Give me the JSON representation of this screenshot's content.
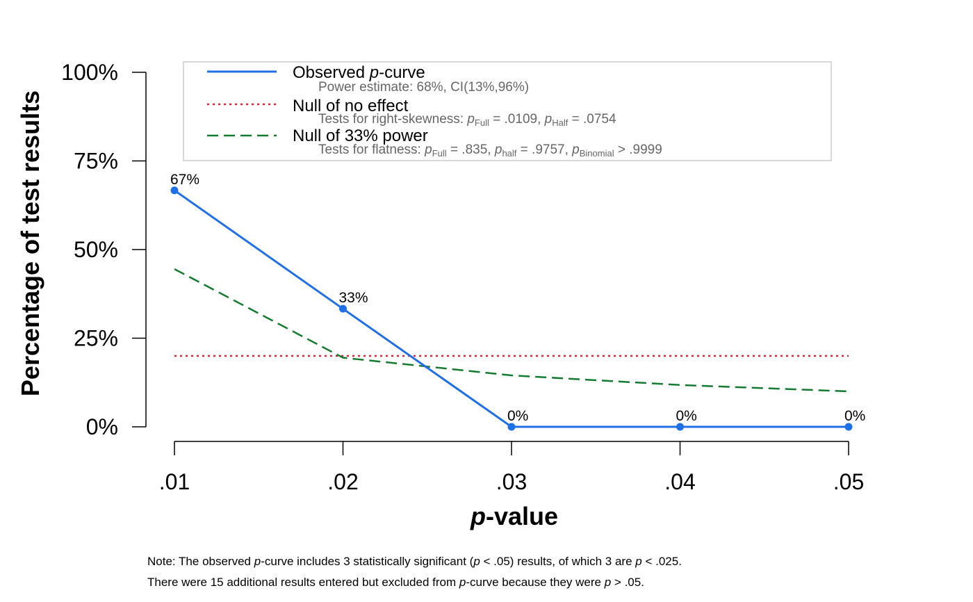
{
  "chart_data": {
    "type": "line",
    "x": [
      0.01,
      0.02,
      0.03,
      0.04,
      0.05
    ],
    "x_tick_labels": [
      ".01",
      ".02",
      ".03",
      ".04",
      ".05"
    ],
    "xlabel_italic": "p",
    "xlabel_rest": "-value",
    "ylabel": "Percentage of test results",
    "y_ticks": [
      0,
      25,
      50,
      75,
      100
    ],
    "y_tick_labels": [
      "0%",
      "25%",
      "50%",
      "75%",
      "100%"
    ],
    "ylim": [
      0,
      100
    ],
    "series": [
      {
        "name": "Observed p-curve",
        "color": "#1f6fe6",
        "style": "solid",
        "values": [
          66.7,
          33.3,
          0,
          0,
          0
        ],
        "labels": [
          "67%",
          "33%",
          "0%",
          "0%",
          "0%"
        ]
      },
      {
        "name": "Null of no effect",
        "color": "#e8202f",
        "style": "dotted",
        "values": [
          20,
          20,
          20,
          20,
          20
        ]
      },
      {
        "name": "Null of 33% power",
        "color": "#137a30",
        "style": "dashed",
        "values": [
          44.5,
          19.5,
          14.5,
          11.8,
          10.0
        ]
      }
    ],
    "legend": {
      "placement": "top",
      "observed_prefix": "Observed ",
      "observed_italic": "p",
      "observed_suffix": "-curve",
      "observed_sub": "Power estimate: 68%, CI(13%,96%)",
      "null_title": "Null of no effect",
      "skew_prefix": "Tests for right-skewness: ",
      "skew_full_value": " = .0109,  ",
      "skew_half_value": " = .0754",
      "power_title": "Null of 33% power",
      "flat_prefix": "Tests for flatness: ",
      "flat_full_value": " = .835,  ",
      "flat_half_value": " = .9757,  ",
      "flat_binomial_value": "  > .9999",
      "p_letter": "p",
      "sub_full": "Full",
      "sub_half_cap": "Half",
      "sub_half_low": "half",
      "sub_binomial": "Binomial"
    }
  },
  "note": {
    "line1_a": "Note: The observed ",
    "line1_p1": "p",
    "line1_b": "-curve includes 3 statistically significant (",
    "line1_p2": "p",
    "line1_c": " < .05) results, of which 3 are ",
    "line1_p3": "p",
    "line1_d": " < .025.",
    "line2_a": "There were 15 additional results entered but excluded from ",
    "line2_p1": "p",
    "line2_b": "-curve because they were ",
    "line2_p2": "p",
    "line2_c": " > .05."
  }
}
